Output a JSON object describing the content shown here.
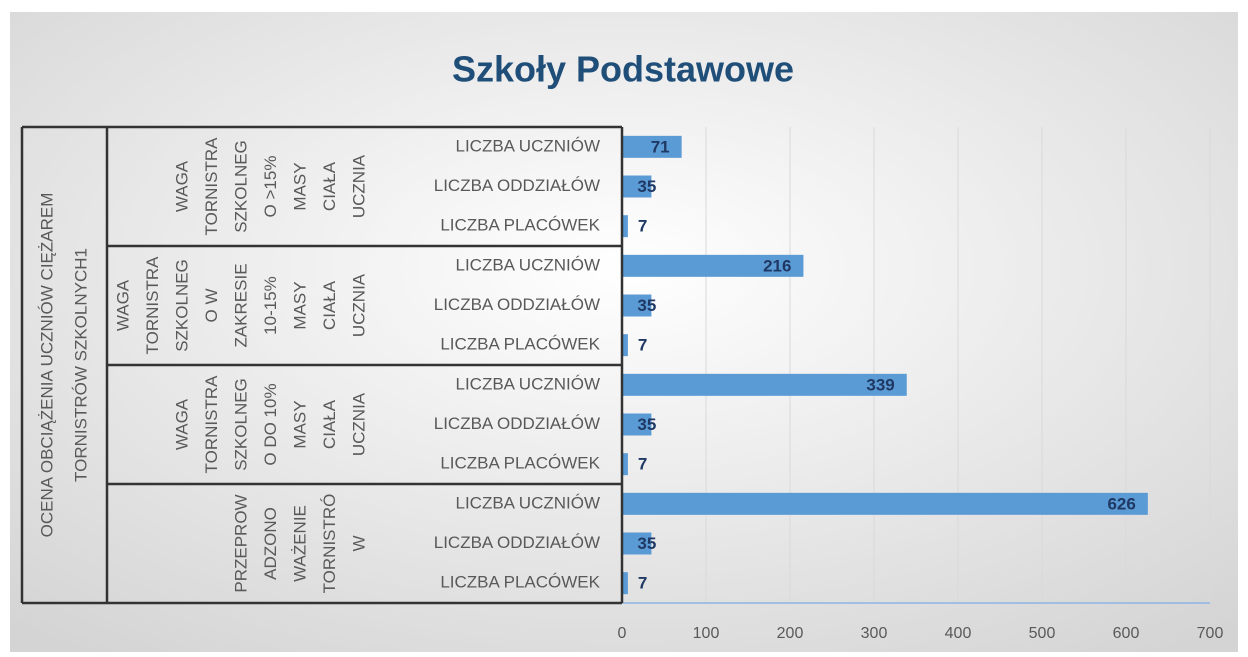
{
  "chart_data": {
    "type": "bar",
    "orientation": "horizontal",
    "title": "Szkoły  Podstawowe",
    "outer_label": [
      "OCENA OBCIĄŻENIA UCZNIÓW CIĘŻAREM",
      "TORNISTRÓW SZKOLNYCH1"
    ],
    "groups": [
      {
        "lines": [
          "WAGA",
          "TORNISTRA",
          "SZKOLNEG",
          "O >15%",
          "MASY",
          "CIAŁA",
          "UCZNIA"
        ]
      },
      {
        "lines": [
          "WAGA",
          "TORNISTRA",
          "SZKOLNEG",
          "O W",
          "ZAKRESIE",
          "10-15%",
          "MASY",
          "CIAŁA",
          "UCZNIA"
        ]
      },
      {
        "lines": [
          "WAGA",
          "TORNISTRA",
          "SZKOLNEG",
          "O DO 10%",
          "MASY",
          "CIAŁA",
          "UCZNIA"
        ]
      },
      {
        "lines": [
          "PRZEPROW",
          "ADZONO",
          "WAŻENIE",
          "TORNISTRÓ",
          "W"
        ]
      }
    ],
    "categories": [
      "LICZBA UCZNIÓW",
      "LICZBA ODDZIAŁÓW",
      "LICZBA PLACÓWEK",
      "LICZBA UCZNIÓW",
      "LICZBA ODDZIAŁÓW",
      "LICZBA PLACÓWEK",
      "LICZBA UCZNIÓW",
      "LICZBA ODDZIAŁÓW",
      "LICZBA PLACÓWEK",
      "LICZBA UCZNIÓW",
      "LICZBA ODDZIAŁÓW",
      "LICZBA PLACÓWEK"
    ],
    "values": [
      71,
      35,
      7,
      216,
      35,
      7,
      339,
      35,
      7,
      626,
      35,
      7
    ],
    "color": "#5b9bd5",
    "xlim": [
      0,
      700
    ],
    "xticks": [
      0,
      100,
      200,
      300,
      400,
      500,
      600,
      700
    ],
    "grid": true
  }
}
